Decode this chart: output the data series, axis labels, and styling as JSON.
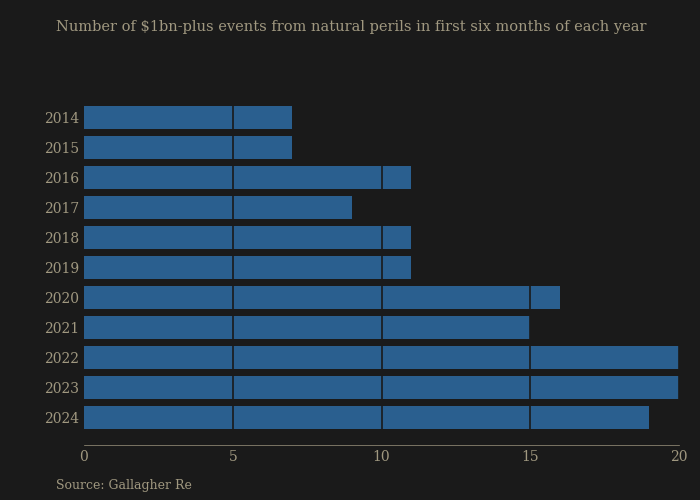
{
  "title": "Number of $1bn-plus events from natural perils in first six months of each year",
  "source": "Source: Gallagher Re",
  "years": [
    "2014",
    "2015",
    "2016",
    "2017",
    "2018",
    "2019",
    "2020",
    "2021",
    "2022",
    "2023",
    "2024"
  ],
  "values": [
    7,
    7,
    11,
    9,
    11,
    11,
    16,
    15,
    20,
    20,
    19
  ],
  "bar_color": "#2a5f8f",
  "background_color": "#1a1a1a",
  "text_color": "#a09880",
  "grid_color": "#1a1a1a",
  "xlim": [
    0,
    20
  ],
  "xticks": [
    0,
    5,
    10,
    15,
    20
  ],
  "title_fontsize": 10.5,
  "tick_fontsize": 10,
  "source_fontsize": 9
}
